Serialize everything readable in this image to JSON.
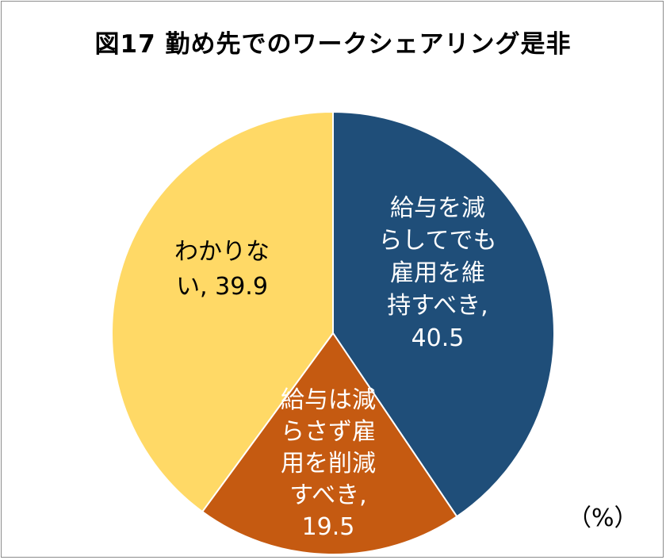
{
  "chart_data": {
    "type": "pie",
    "title": "図17 勤め先でのワークシェアリング是非",
    "unit_label": "（%）",
    "slices": [
      {
        "label_lines": [
          "給与を減",
          "らしてでも",
          "雇用を維",
          "持すべき,"
        ],
        "value": 40.5,
        "color": "#1f4e79",
        "text_color": "#ffffff"
      },
      {
        "label_lines": [
          "給与は減",
          "らさず雇",
          "用を削減",
          "すべき,"
        ],
        "value": 19.5,
        "color": "#c55a11",
        "text_color": "#ffffff"
      },
      {
        "label_lines": [
          "わかりな",
          "い, 39.9"
        ],
        "value": 39.9,
        "color": "#ffd966",
        "text_color": "#000000"
      }
    ]
  }
}
